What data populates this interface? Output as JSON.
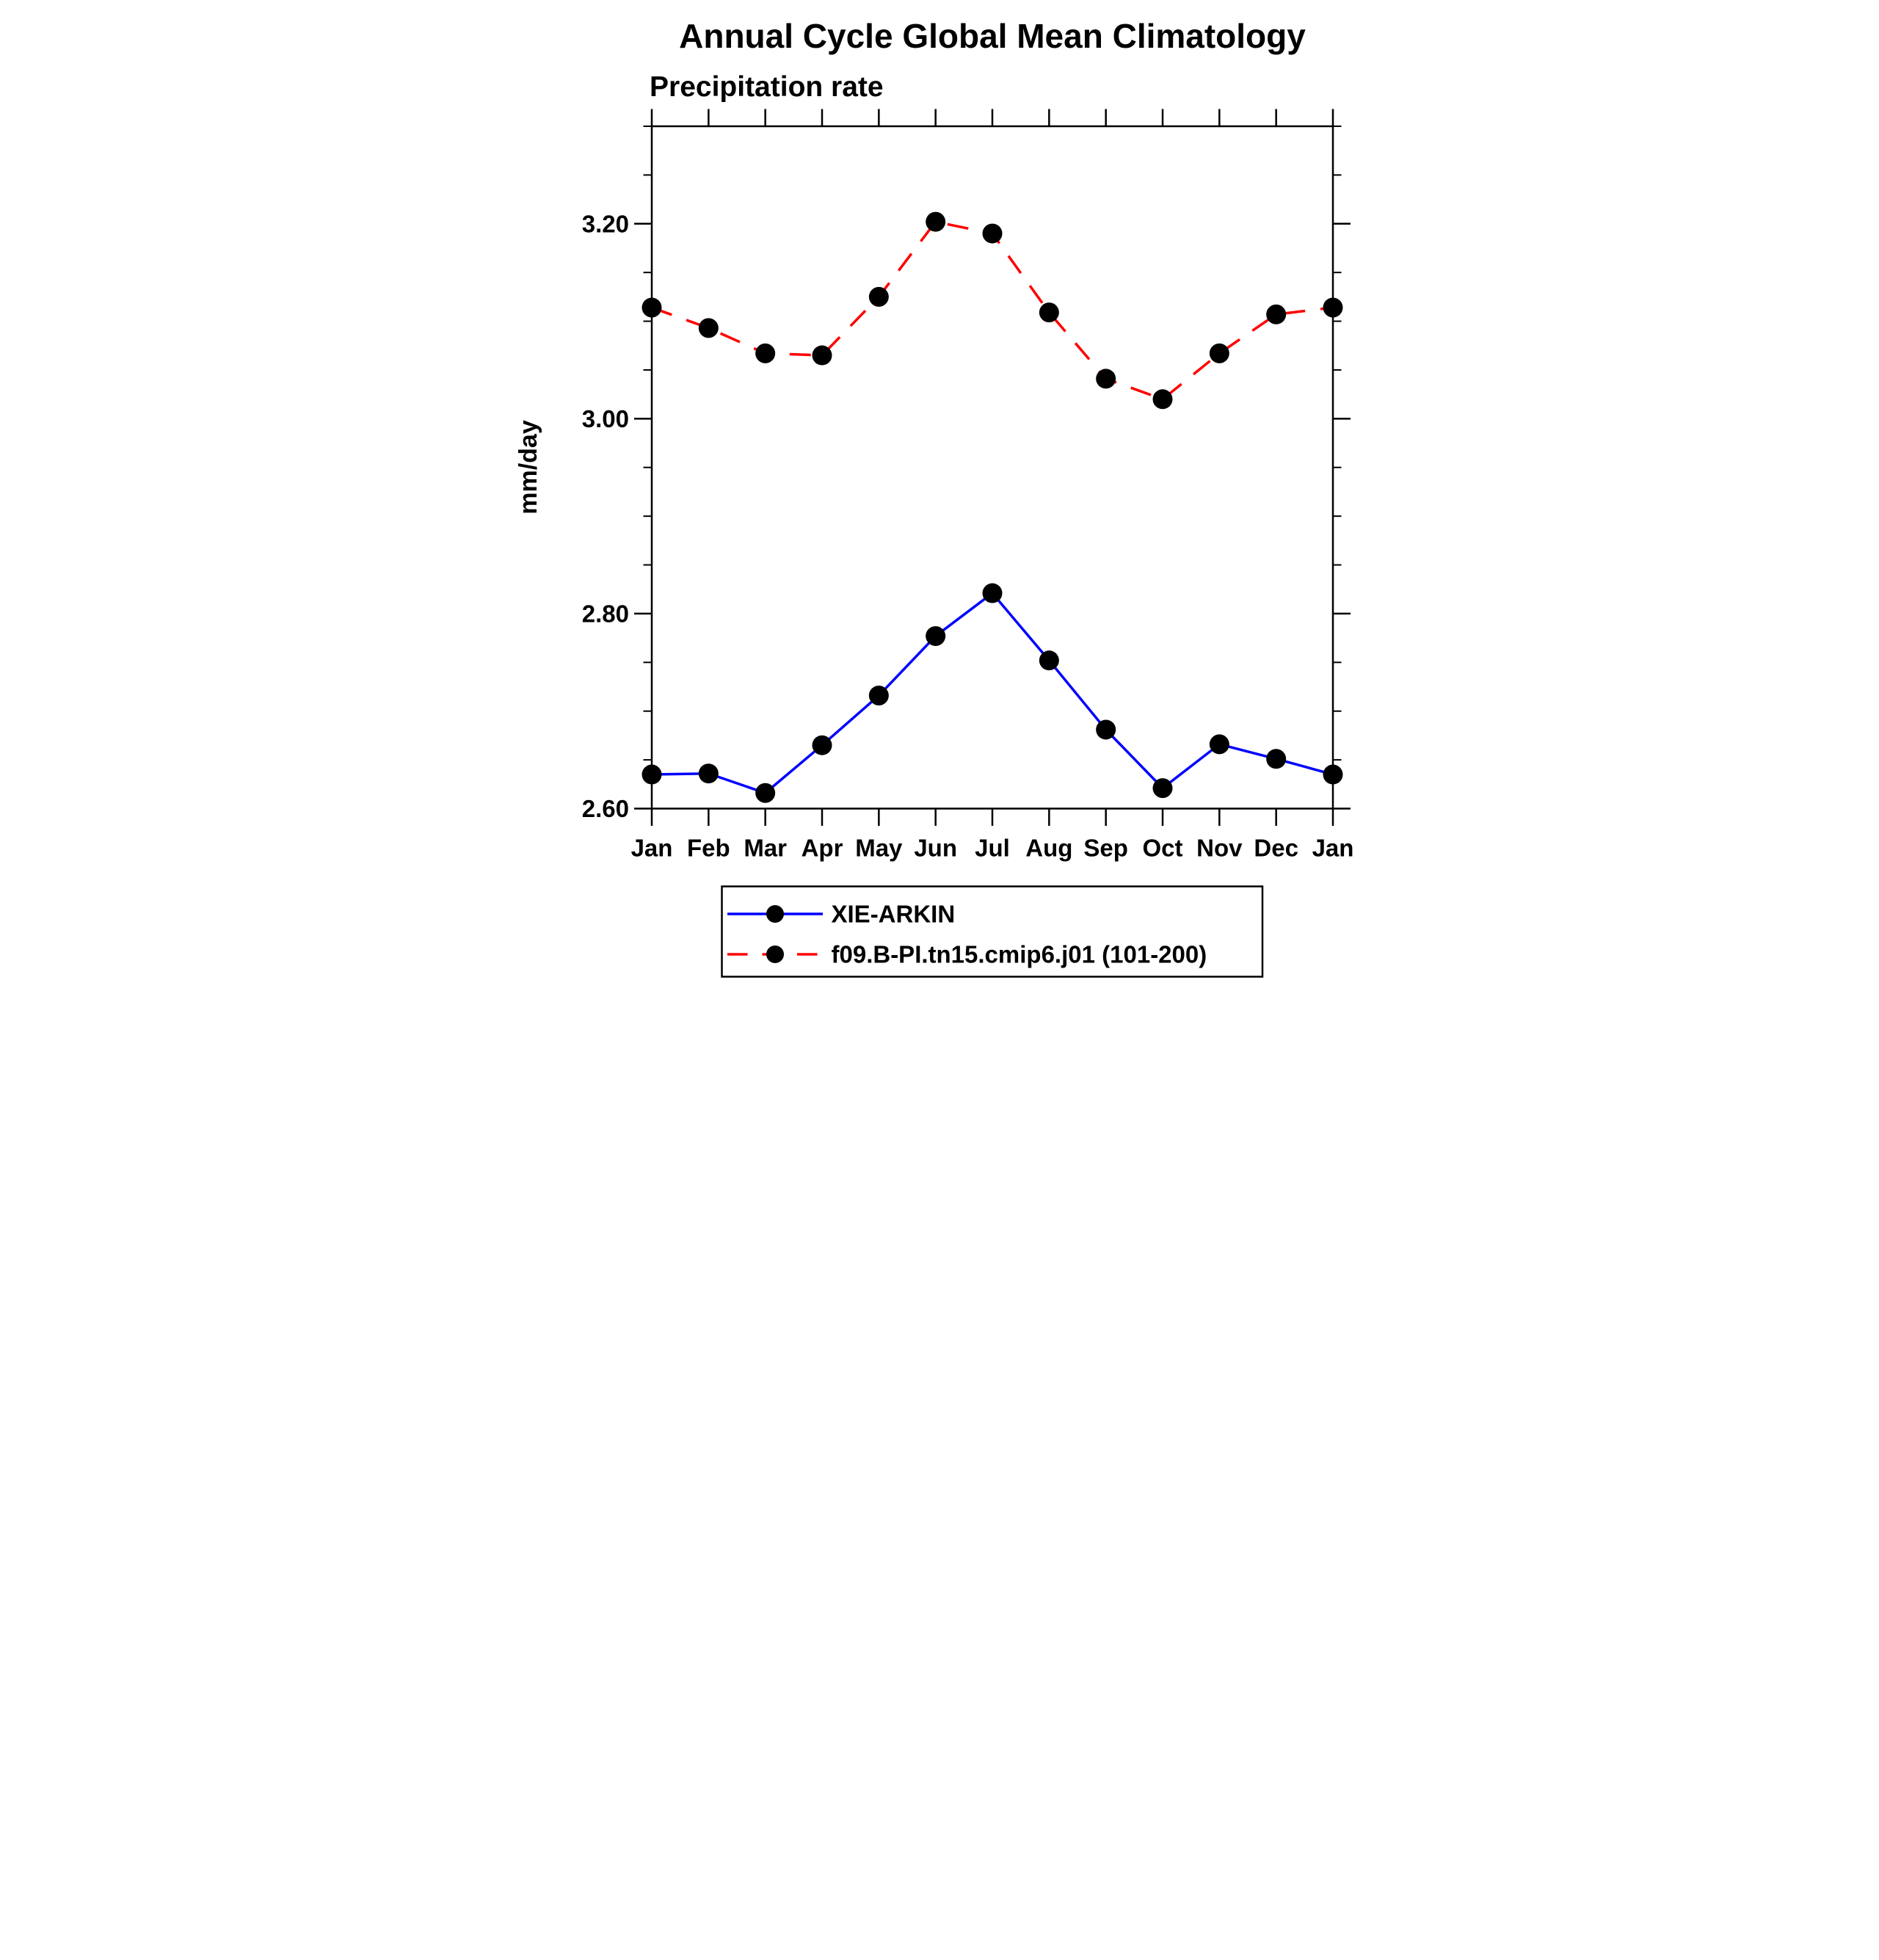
{
  "title": "Annual Cycle Global Mean Climatology",
  "subtitle": "Precipitation rate",
  "ylabel": "mm/day",
  "colors": {
    "series1": "#0000ff",
    "series2": "#ff0000",
    "marker": "#000000",
    "axis": "#000000",
    "background": "#ffffff"
  },
  "chart_data": {
    "type": "line",
    "x_categories": [
      "Jan",
      "Feb",
      "Mar",
      "Apr",
      "May",
      "Jun",
      "Jul",
      "Aug",
      "Sep",
      "Oct",
      "Nov",
      "Dec",
      "Jan"
    ],
    "series": [
      {
        "name": "XIE-ARKIN",
        "color": "#0000ff",
        "line_style": "solid",
        "marker": "filled-circle",
        "marker_color": "#000000",
        "values": [
          2.635,
          2.636,
          2.616,
          2.665,
          2.716,
          2.777,
          2.821,
          2.752,
          2.681,
          2.621,
          2.666,
          2.651,
          2.635
        ]
      },
      {
        "name": "f09.B-PI.tn15.cmip6.j01 (101-200)",
        "color": "#ff0000",
        "line_style": "dashed",
        "marker": "filled-circle",
        "marker_color": "#000000",
        "values": [
          3.114,
          3.093,
          3.067,
          3.065,
          3.125,
          3.202,
          3.19,
          3.109,
          3.041,
          3.02,
          3.067,
          3.107,
          3.114
        ]
      }
    ],
    "ylabel": "mm/day",
    "ylim": [
      2.6,
      3.3
    ],
    "y_major_ticks": [
      3.2,
      3.0,
      2.8,
      2.6
    ],
    "y_major_tick_labels": [
      "3.20",
      "3.00",
      "2.80",
      "2.60"
    ],
    "y_minor_step": 0.05,
    "grid": false,
    "legend_position": "bottom"
  },
  "legend": {
    "entries": [
      {
        "label": "XIE-ARKIN"
      },
      {
        "label": "f09.B-PI.tn15.cmip6.j01 (101-200)"
      }
    ]
  }
}
